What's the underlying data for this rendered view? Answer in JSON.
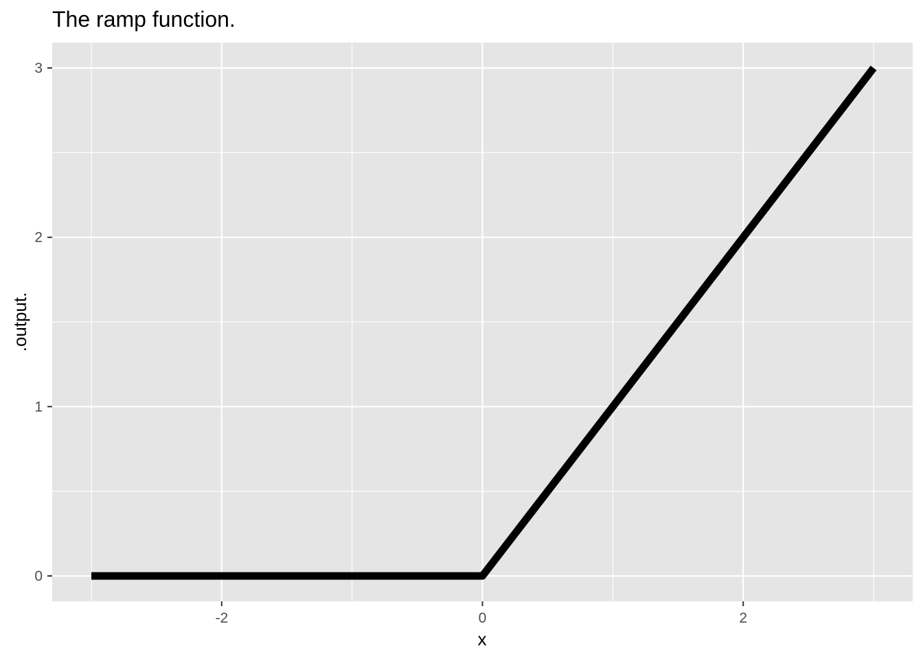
{
  "chart_data": {
    "type": "line",
    "title": "The ramp function.",
    "xlabel": "x",
    "ylabel": ".output.",
    "xlim": [
      -3.3,
      3.3
    ],
    "ylim": [
      -0.15,
      3.15
    ],
    "x_ticks": [
      -2,
      0,
      2
    ],
    "x_tick_labels": [
      "-2",
      "0",
      "2"
    ],
    "x_minor_ticks": [
      -3,
      -1,
      1,
      3
    ],
    "y_ticks": [
      0,
      1,
      2,
      3
    ],
    "y_tick_labels": [
      "0",
      "1",
      "2",
      "3"
    ],
    "y_minor_ticks": [
      0.5,
      1.5,
      2.5
    ],
    "grid": true,
    "series": [
      {
        "name": ".output.",
        "x": [
          -3,
          -2.4,
          -1.8,
          -1.2,
          -0.6,
          0,
          0.6,
          1.2,
          1.8,
          2.4,
          3
        ],
        "y": [
          0,
          0,
          0,
          0,
          0,
          0,
          0.6,
          1.2,
          1.8,
          2.4,
          3
        ],
        "color": "#000000"
      }
    ],
    "panel_color": "#e5e5e5",
    "grid_color": "#ffffff"
  }
}
